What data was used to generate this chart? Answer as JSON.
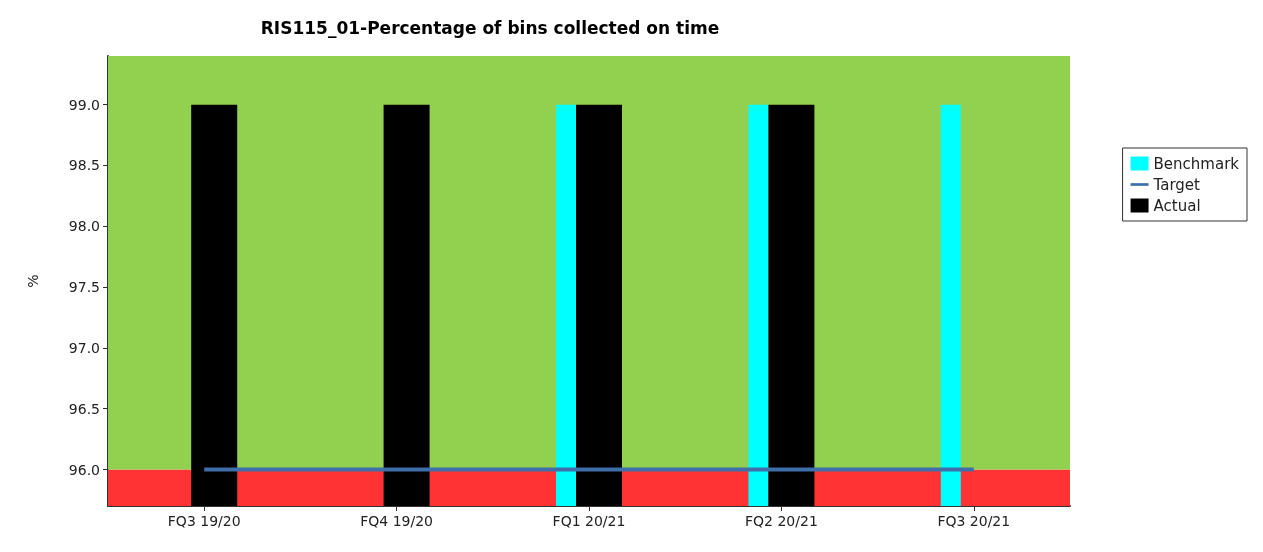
{
  "chart_data": {
    "type": "bar",
    "title": "RIS115_01-Percentage of bins collected on time",
    "ylabel": "%",
    "categories": [
      "FQ3 19/20",
      "FQ4 19/20",
      "FQ1 20/21",
      "FQ2 20/21",
      "FQ3 20/21"
    ],
    "series": [
      {
        "name": "Benchmark",
        "color": "#00ffff",
        "values": [
          null,
          null,
          99.0,
          99.0,
          99.0
        ]
      },
      {
        "name": "Target",
        "type": "line",
        "color": "#3f6fa8",
        "values": [
          96.0,
          96.0,
          96.0,
          96.0,
          96.0
        ]
      },
      {
        "name": "Actual",
        "color": "#000000",
        "values": [
          99.0,
          99.0,
          99.0,
          99.0,
          null
        ]
      }
    ],
    "ylim": [
      95.7,
      99.4
    ],
    "yticks": [
      {
        "value": 96,
        "label": "96.0"
      },
      96.5,
      {
        "value": 97,
        "label": "97.0"
      },
      97.5,
      {
        "value": 98,
        "label": "98.0"
      },
      98.5,
      {
        "value": 99,
        "label": "99.0"
      }
    ],
    "bands": [
      {
        "axis": "y",
        "from": 95.7,
        "to": 96.0,
        "color": "#ff3333"
      },
      {
        "axis": "y",
        "from": 96.0,
        "to": 99.4,
        "color": "#92d050"
      }
    ],
    "legend": "right",
    "marker": "none",
    "line_style": "solid"
  }
}
